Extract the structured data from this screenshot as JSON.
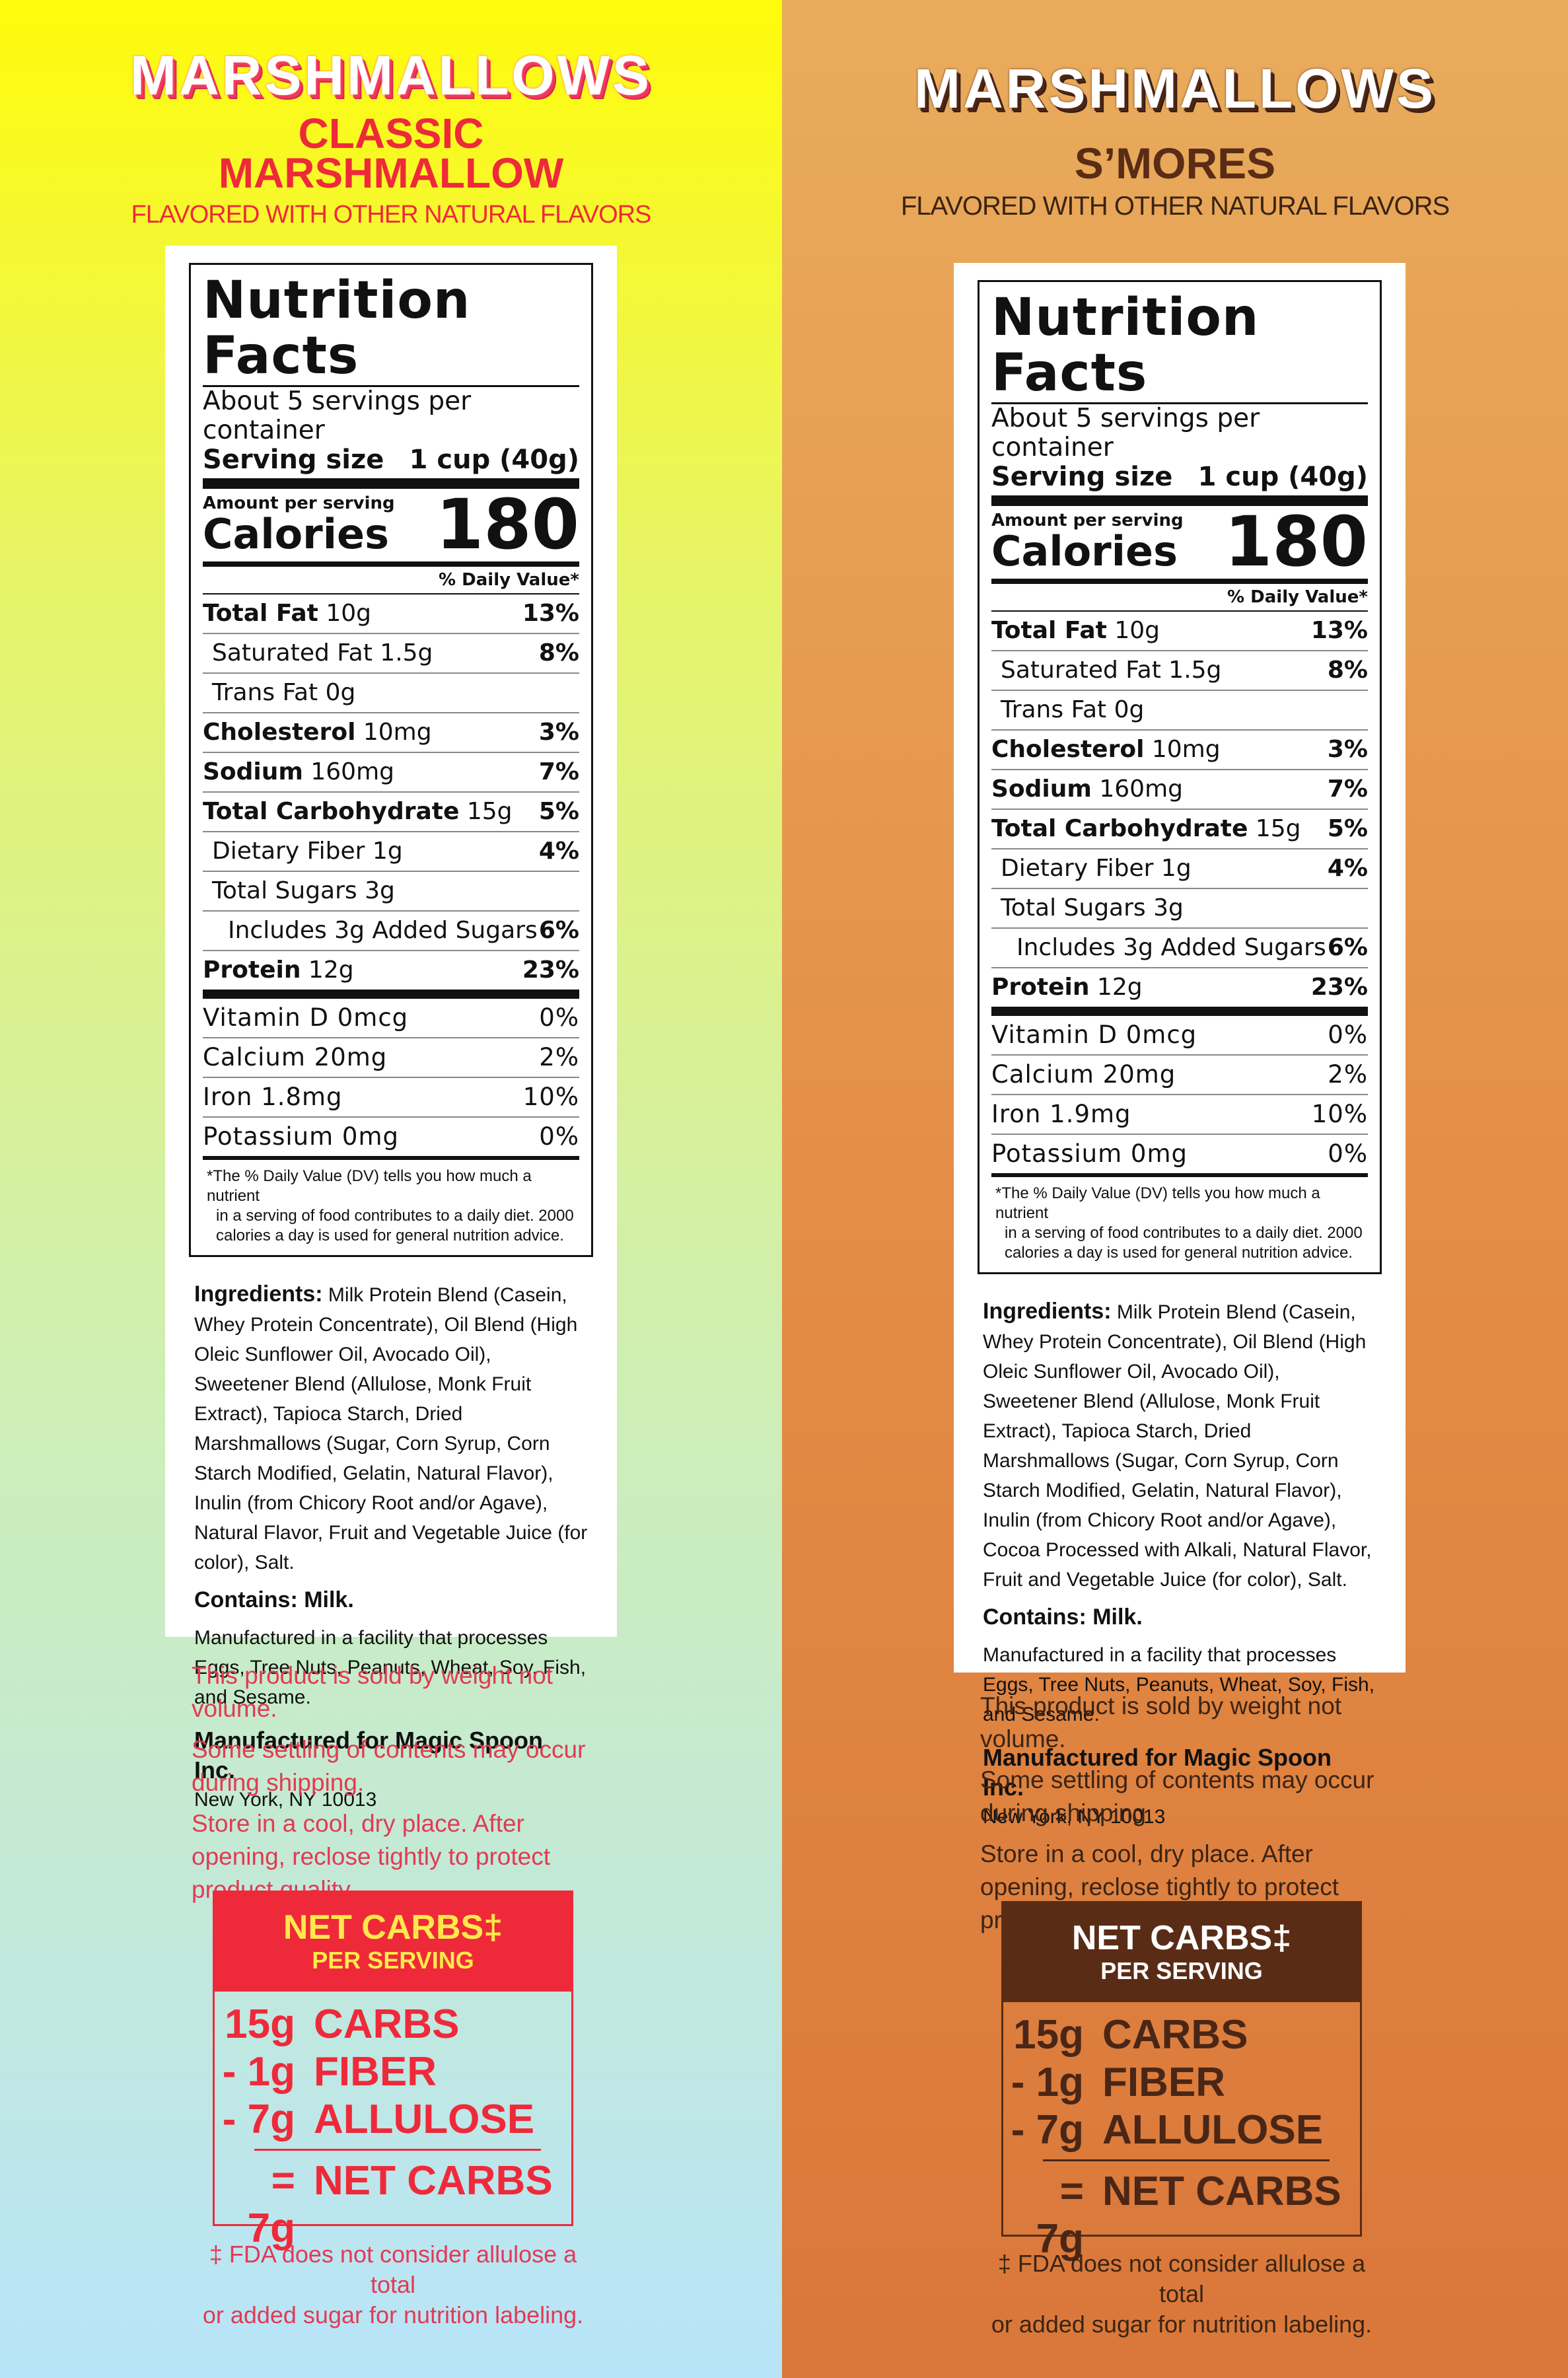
{
  "brand_title": "MARSHMALLOWS",
  "products": [
    {
      "flavor": "CLASSIC MARSHMALLOW",
      "flavor_line1": "CLASSIC",
      "flavor_line2": "MARSHMALLOW",
      "subtitle": "FLAVORED WITH OTHER NATURAL FLAVORS",
      "nutrition": {
        "title": "Nutrition Facts",
        "servings": "About 5 servings per container",
        "serving_size_label": "Serving size",
        "serving_size_value": "1 cup (40g)",
        "amount_per_serving": "Amount per serving",
        "calories_label": "Calories",
        "calories_value": "180",
        "dv_header": "% Daily Value*",
        "total_fat": {
          "label": "Total Fat",
          "amount": "10g",
          "dv": "13%"
        },
        "saturated_fat": {
          "label": "Saturated Fat 1.5g",
          "dv": "8%"
        },
        "trans_fat": {
          "label": "Trans Fat 0g"
        },
        "cholesterol": {
          "label": "Cholesterol",
          "amount": "10mg",
          "dv": "3%"
        },
        "sodium": {
          "label": "Sodium",
          "amount": "160mg",
          "dv": "7%"
        },
        "total_carb": {
          "label": "Total Carbohydrate",
          "amount": "15g",
          "dv": "5%"
        },
        "dietary_fiber": {
          "label": "Dietary Fiber 1g",
          "dv": "4%"
        },
        "total_sugars": {
          "label": "Total Sugars 3g"
        },
        "added_sugars": {
          "label": "Includes 3g Added Sugars",
          "dv": "6%"
        },
        "protein": {
          "label": "Protein",
          "amount": "12g",
          "dv": "23%"
        },
        "vitamin_d": {
          "label": "Vitamin D 0mcg",
          "dv": "0%"
        },
        "calcium": {
          "label": "Calcium 20mg",
          "dv": "2%"
        },
        "iron": {
          "label": "Iron 1.8mg",
          "dv": "10%"
        },
        "potassium": {
          "label": "Potassium 0mg",
          "dv": "0%"
        },
        "footnote_1": "*The % Daily Value (DV) tells you how much a nutrient",
        "footnote_2": "in a serving of food contributes to a daily diet. 2000",
        "footnote_3": "calories a day is used for general nutrition advice."
      },
      "ingredients_label": "Ingredients:",
      "ingredients_text": "Milk Protein Blend (Casein, Whey Protein Concentrate), Oil Blend (High Oleic Sunflower Oil, Avocado Oil), Sweetener Blend (Allulose, Monk Fruit Extract), Tapioca Starch, Dried Marshmallows (Sugar, Corn Syrup, Corn Starch Modified, Gelatin, Natural Flavor), Inulin (from Chicory Root and/or Agave), Natural Flavor, Fruit and Vegetable Juice (for color), Salt.",
      "contains": "Contains: Milk.",
      "facility": "Manufactured in a facility that processes Eggs, Tree Nuts, Peanuts, Wheat, Soy, Fish, and Sesame.",
      "manufacturer": "Manufactured for Magic Spoon Inc.",
      "address": "New York, NY 10013",
      "notice_1": "This product is sold by weight not volume.",
      "notice_2": "Some settling of contents may occur during shipping.",
      "notice_3": "Store in a cool, dry place. After opening, reclose tightly to protect product quality.",
      "net_carbs": {
        "title": "NET CARBS‡",
        "subtitle": "PER SERVING",
        "rows": [
          {
            "qty": "15g",
            "label": "CARBS"
          },
          {
            "qty": "- 1g",
            "label": "FIBER"
          },
          {
            "qty": "- 7g",
            "label": "ALLULOSE"
          }
        ],
        "result_qty": "= 7g",
        "result_label": "NET CARBS"
      },
      "fda_note_1": "‡ FDA does not consider allulose a total",
      "fda_note_2": "or added sugar for nutrition labeling."
    },
    {
      "flavor": "S’MORES",
      "subtitle": "FLAVORED WITH OTHER NATURAL FLAVORS",
      "nutrition": {
        "title": "Nutrition Facts",
        "servings": "About 5 servings per container",
        "serving_size_label": "Serving size",
        "serving_size_value": "1 cup (40g)",
        "amount_per_serving": "Amount per serving",
        "calories_label": "Calories",
        "calories_value": "180",
        "dv_header": "% Daily Value*",
        "total_fat": {
          "label": "Total Fat",
          "amount": "10g",
          "dv": "13%"
        },
        "saturated_fat": {
          "label": "Saturated Fat 1.5g",
          "dv": "8%"
        },
        "trans_fat": {
          "label": "Trans Fat 0g"
        },
        "cholesterol": {
          "label": "Cholesterol",
          "amount": "10mg",
          "dv": "3%"
        },
        "sodium": {
          "label": "Sodium",
          "amount": "160mg",
          "dv": "7%"
        },
        "total_carb": {
          "label": "Total Carbohydrate",
          "amount": "15g",
          "dv": "5%"
        },
        "dietary_fiber": {
          "label": "Dietary Fiber 1g",
          "dv": "4%"
        },
        "total_sugars": {
          "label": "Total Sugars 3g"
        },
        "added_sugars": {
          "label": "Includes 3g Added Sugars",
          "dv": "6%"
        },
        "protein": {
          "label": "Protein",
          "amount": "12g",
          "dv": "23%"
        },
        "vitamin_d": {
          "label": "Vitamin D 0mcg",
          "dv": "0%"
        },
        "calcium": {
          "label": "Calcium 20mg",
          "dv": "2%"
        },
        "iron": {
          "label": "Iron 1.9mg",
          "dv": "10%"
        },
        "potassium": {
          "label": "Potassium 0mg",
          "dv": "0%"
        },
        "footnote_1": "*The % Daily Value (DV) tells you how much a nutrient",
        "footnote_2": "in a serving of food contributes to a daily diet. 2000",
        "footnote_3": "calories a day is used for general nutrition advice."
      },
      "ingredients_label": "Ingredients:",
      "ingredients_text": "Milk Protein Blend (Casein, Whey Protein Concentrate), Oil Blend (High Oleic Sunflower Oil, Avocado Oil), Sweetener Blend (Allulose, Monk Fruit Extract), Tapioca Starch, Dried Marshmallows (Sugar, Corn Syrup, Corn Starch Modified, Gelatin, Natural Flavor), Inulin (from Chicory Root and/or Agave), Cocoa Processed with Alkali, Natural Flavor, Fruit and Vegetable Juice (for color), Salt.",
      "contains": "Contains: Milk.",
      "facility": "Manufactured in a facility that processes Eggs, Tree Nuts, Peanuts, Wheat, Soy, Fish, and Sesame.",
      "manufacturer": "Manufactured for Magic Spoon Inc.",
      "address": "New York, NY 10013",
      "notice_1": "This product is sold by weight not volume.",
      "notice_2": "Some settling of contents may occur during shipping.",
      "notice_3": "Store in a cool, dry place. After opening, reclose tightly to protect product quality.",
      "net_carbs": {
        "title": "NET CARBS‡",
        "subtitle": "PER SERVING",
        "rows": [
          {
            "qty": "15g",
            "label": "CARBS"
          },
          {
            "qty": "- 1g",
            "label": "FIBER"
          },
          {
            "qty": "- 7g",
            "label": "ALLULOSE"
          }
        ],
        "result_qty": "= 7g",
        "result_label": "NET CARBS"
      },
      "fda_note_1": "‡ FDA does not consider allulose a total",
      "fda_note_2": "or added sugar for nutrition labeling."
    }
  ],
  "colors": {
    "left_accent": "#ee2a3a",
    "left_note": "#e23a55",
    "right_accent": "#5a2c16",
    "right_text": "#3b2414"
  }
}
